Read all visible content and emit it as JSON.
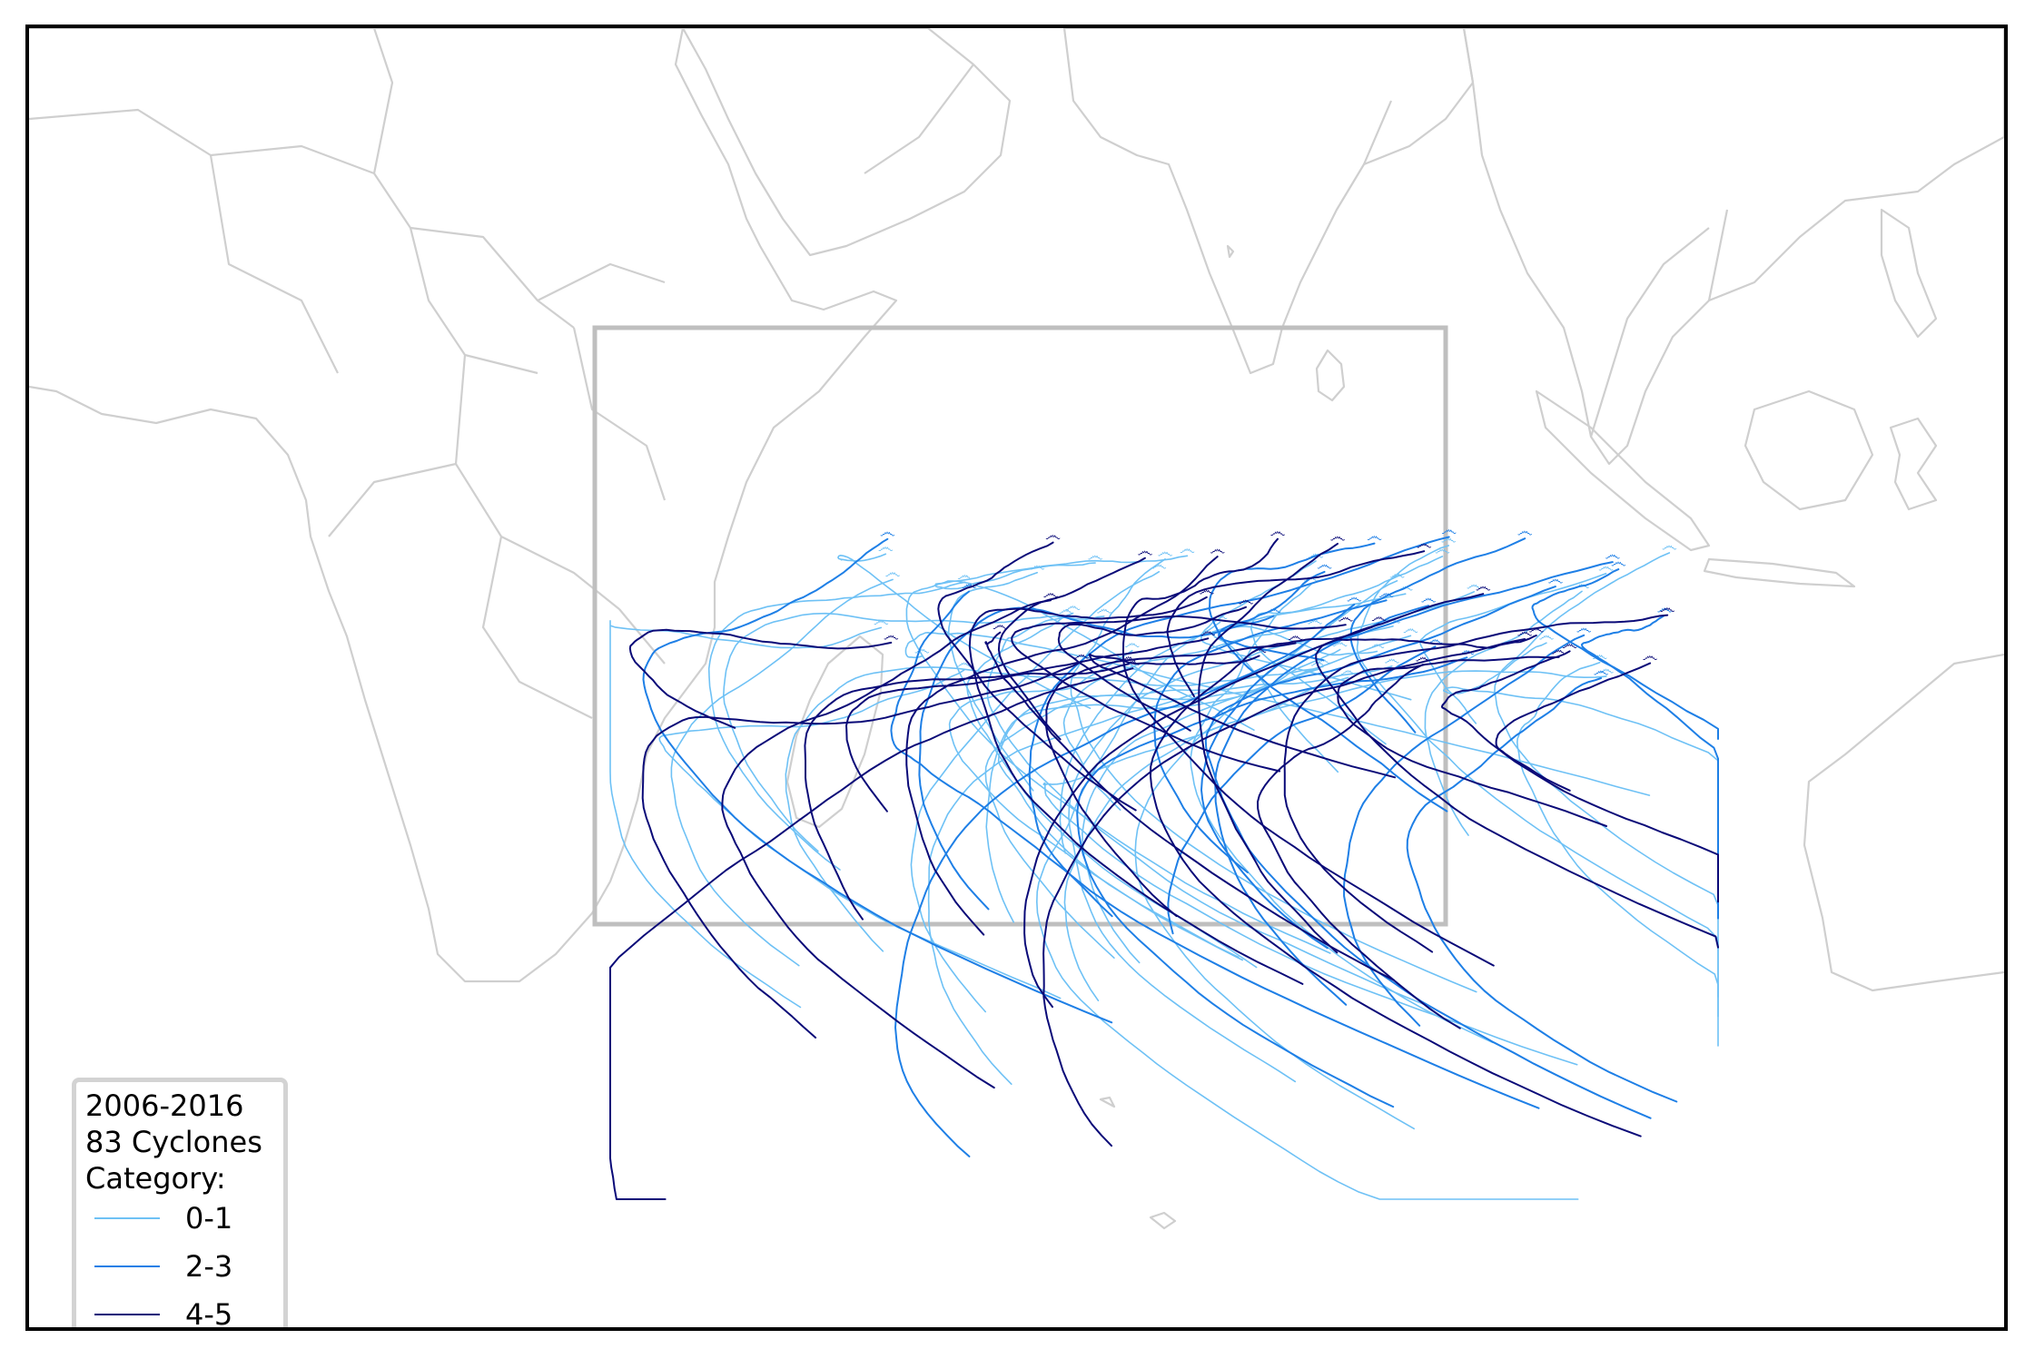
{
  "map": {
    "period": "2006-2016",
    "count_label": "83 Cyclones",
    "category_heading": "Category:",
    "region_box_color": "#bfbfbf",
    "land_outline_color": "#cfcfcf"
  },
  "legend": {
    "placement": "bottom-left",
    "items": [
      {
        "label": "0-1",
        "color": "#6ec1f5"
      },
      {
        "label": "2-3",
        "color": "#1e7fe6"
      },
      {
        "label": "4-5",
        "color": "#0a0a78"
      }
    ]
  },
  "icon": {
    "cyclone_start_marker": "cyclone-genesis-icon"
  }
}
